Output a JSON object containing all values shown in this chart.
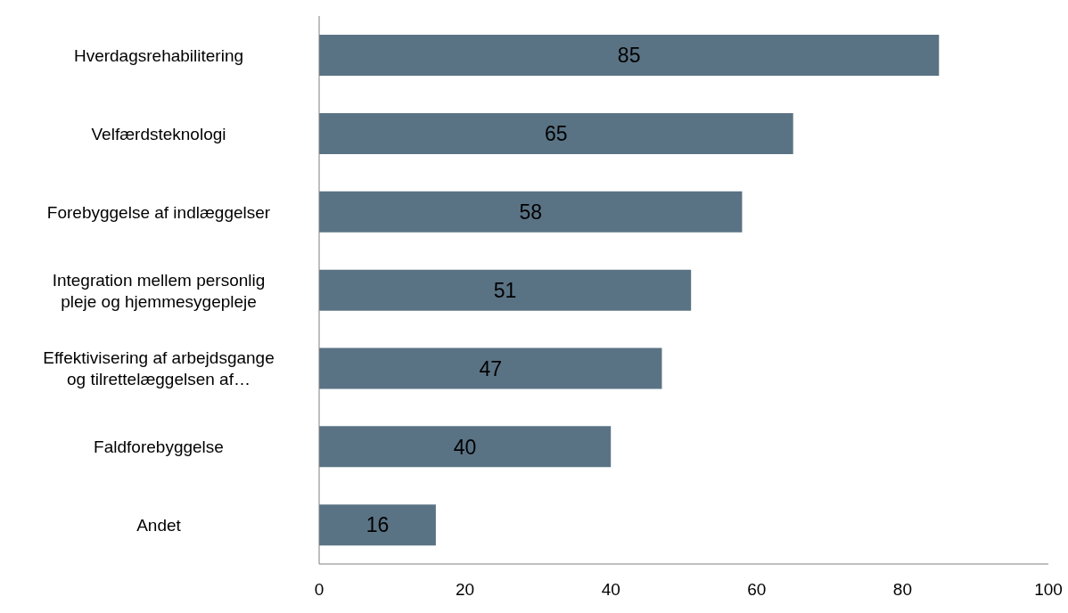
{
  "chart_data": {
    "type": "bar",
    "orientation": "horizontal",
    "categories": [
      "Hverdagsrehabilitering",
      "Velfærdsteknologi",
      "Forebyggelse af indlæggelser",
      "Integration mellem personlig pleje og hjemmesygepleje",
      "Effektivisering af arbejdsgange og tilrettelæggelsen af…",
      "Faldforebyggelse",
      "Andet"
    ],
    "values": [
      85,
      65,
      58,
      51,
      47,
      40,
      16
    ],
    "color": "#5a7384",
    "xlim": [
      0,
      100
    ],
    "xticks": [
      0,
      20,
      40,
      60,
      80,
      100
    ],
    "data_labels": true,
    "grid": false,
    "legend": false
  }
}
